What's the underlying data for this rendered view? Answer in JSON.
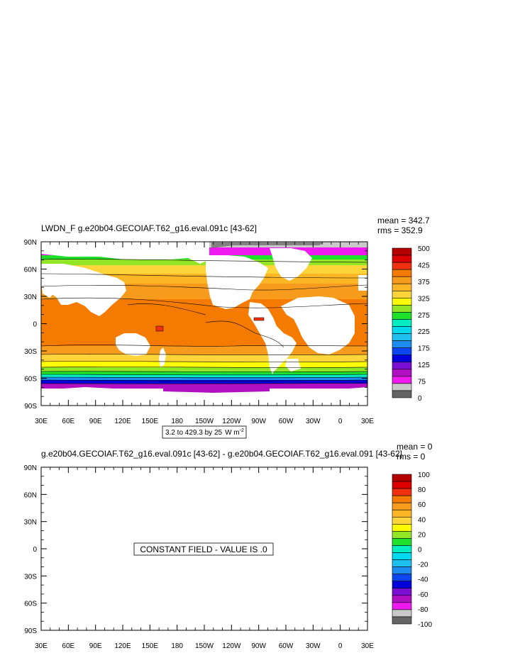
{
  "chart_data": [
    {
      "type": "heatmap",
      "title": "LWDN_F g.e20b04.GECOIAF.T62_g16.eval.091c [43-62]",
      "stats": {
        "mean": "mean = 342.7",
        "rms": "rms = 352.9"
      },
      "y_ticks": [
        "90N",
        "60N",
        "30N",
        "0",
        "30S",
        "60S",
        "90S"
      ],
      "x_ticks": [
        "30E",
        "60E",
        "90E",
        "120E",
        "150E",
        "180",
        "150W",
        "120W",
        "90W",
        "60W",
        "30W",
        "0",
        "30E"
      ],
      "range_text": "3.2 to 429.3 by 25",
      "units": "W m",
      "units_exp": "-2",
      "colorbar_labels": [
        "500",
        "425",
        "375",
        "325",
        "275",
        "225",
        "175",
        "125",
        "75",
        "0"
      ],
      "colorbar_colors": [
        "#b40000",
        "#dc0000",
        "#f03010",
        "#f57b00",
        "#f79b1c",
        "#fbb626",
        "#fcd53a",
        "#fffb00",
        "#93e625",
        "#1fe02b",
        "#00eec0",
        "#00d9f0",
        "#1ec0f0",
        "#1c8cf0",
        "#0c46f0",
        "#0000dd",
        "#7a0fd3",
        "#b00fc2",
        "#f019f0",
        "#c9c9c9",
        "#646464"
      ]
    },
    {
      "type": "heatmap",
      "title": "g.e20b04.GECOIAF.T62_g16.eval.091c [43-62] - g.e20b04.GECOIAF.T62_g16.eval.091 [43-62]",
      "stats": {
        "mean": "mean = 0",
        "rms": "rms = 0"
      },
      "y_ticks": [
        "90N",
        "60N",
        "30N",
        "0",
        "30S",
        "60S",
        "90S"
      ],
      "x_ticks": [
        "30E",
        "60E",
        "90E",
        "120E",
        "150E",
        "180",
        "150W",
        "120W",
        "90W",
        "60W",
        "30W",
        "0",
        "30E"
      ],
      "center_note": "CONSTANT FIELD - VALUE IS .0",
      "colorbar_labels": [
        "100",
        "80",
        "60",
        "40",
        "20",
        "0",
        "-20",
        "-40",
        "-60",
        "-80",
        "-100"
      ],
      "colorbar_colors": [
        "#b40000",
        "#dc0000",
        "#f03010",
        "#f57b00",
        "#f79b1c",
        "#fbb626",
        "#fcd53a",
        "#fffb00",
        "#93e625",
        "#1fe02b",
        "#00eec0",
        "#00d9f0",
        "#1ec0f0",
        "#1c8cf0",
        "#0c46f0",
        "#0000dd",
        "#7a0fd3",
        "#b00fc2",
        "#f019f0",
        "#c9c9c9",
        "#646464"
      ]
    }
  ]
}
